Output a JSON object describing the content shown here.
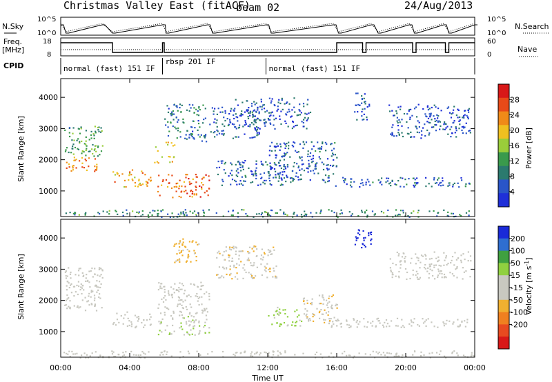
{
  "header": {
    "title": "Christmas Valley East (fitACF)",
    "beam": "beam 02",
    "date": "24/Aug/2013"
  },
  "strips": {
    "nsky": {
      "left_label": "N.Sky",
      "right_label": "N.Search",
      "left_ticks": [
        "10^5",
        "10^0"
      ],
      "right_ticks": [
        "10^5",
        "10^0"
      ]
    },
    "freq": {
      "left_label_1": "Freq.",
      "left_label_2": "[MHz]",
      "right_label": "Nave",
      "left_ticks": [
        "18",
        "8"
      ],
      "right_ticks": [
        "60",
        "0"
      ]
    },
    "cpid": {
      "label": "CPID",
      "segments": [
        {
          "start_hour": 0.0,
          "end_hour": 5.9,
          "text": "normal (fast) 151 IF"
        },
        {
          "start_hour": 5.9,
          "end_hour": 11.9,
          "text": "rbsp 201 IF"
        },
        {
          "start_hour": 11.9,
          "end_hour": 24.0,
          "text": "normal (fast) 151 IF"
        }
      ]
    }
  },
  "chart_data": [
    {
      "type": "heatmap",
      "name": "power-panel",
      "ylabel": "Slant Range [km]",
      "xlabel": "",
      "xlim_hours": [
        0,
        24
      ],
      "ylim": [
        180,
        4600
      ],
      "yticks": [
        1000,
        2000,
        3000,
        4000
      ],
      "colorbar": {
        "label": "Power [dB]",
        "range": [
          0,
          32
        ],
        "ticks": [
          4,
          8,
          12,
          16,
          20,
          24,
          28
        ],
        "colors": [
          "#1f2fd8",
          "#2a55c8",
          "#2b7a6e",
          "#3a9a4c",
          "#9acd3a",
          "#f0c020",
          "#f08a18",
          "#e84a18",
          "#d81818"
        ]
      },
      "features": [
        {
          "h0": 0.2,
          "h1": 2.2,
          "r0": 1650,
          "r1": 2100,
          "value": 23
        },
        {
          "h0": 0.2,
          "h1": 2.4,
          "r0": 2100,
          "r1": 3100,
          "value": 12
        },
        {
          "h0": 3.0,
          "h1": 5.2,
          "r0": 1150,
          "r1": 1700,
          "value": 22
        },
        {
          "h0": 5.4,
          "h1": 6.6,
          "r0": 1900,
          "r1": 2600,
          "value": 19
        },
        {
          "h0": 5.6,
          "h1": 8.6,
          "r0": 800,
          "r1": 1550,
          "value": 25
        },
        {
          "h0": 6.0,
          "h1": 8.4,
          "r0": 2600,
          "r1": 3800,
          "value": 8
        },
        {
          "h0": 8.6,
          "h1": 11.5,
          "r0": 2700,
          "r1": 3700,
          "value": 6
        },
        {
          "h0": 9.0,
          "h1": 13.0,
          "r0": 1200,
          "r1": 2000,
          "value": 6
        },
        {
          "h0": 10.0,
          "h1": 14.5,
          "r0": 3000,
          "r1": 4000,
          "value": 5
        },
        {
          "h0": 12.0,
          "h1": 16.0,
          "r0": 1300,
          "r1": 2600,
          "value": 6
        },
        {
          "h0": 15.5,
          "h1": 23.8,
          "r0": 1150,
          "r1": 1450,
          "value": 7
        },
        {
          "h0": 17.0,
          "h1": 18.0,
          "r0": 3300,
          "r1": 4300,
          "value": 5
        },
        {
          "h0": 19.0,
          "h1": 23.8,
          "r0": 2700,
          "r1": 3800,
          "value": 5
        },
        {
          "h0": 0.0,
          "h1": 24.0,
          "r0": 180,
          "r1": 420,
          "value": 10
        }
      ]
    },
    {
      "type": "heatmap",
      "name": "velocity-panel",
      "ylabel": "Slant Range [km]",
      "xlabel": "Time UT",
      "xticks": [
        "00:00",
        "04:00",
        "08:00",
        "12:00",
        "16:00",
        "20:00",
        "00:00"
      ],
      "xlim_hours": [
        0,
        24
      ],
      "ylim": [
        180,
        4600
      ],
      "yticks": [
        1000,
        2000,
        3000,
        4000
      ],
      "colorbar": {
        "label": "Velocity [m s^-1]",
        "label_parts": [
          "Velocity [m s",
          "-1",
          "]"
        ],
        "range": [
          -250,
          250
        ],
        "ticks": [
          "200",
          "100",
          "50",
          "15",
          "-15",
          "-50",
          "-100",
          "-200"
        ],
        "tick_values": [
          200,
          100,
          50,
          15,
          -15,
          -50,
          -100,
          -200
        ],
        "colors": [
          "#1a2ad8",
          "#2f6ed0",
          "#3fa040",
          "#90d040",
          "#c8c8c0",
          "#c8c8c0",
          "#f0b030",
          "#f08020",
          "#e84a20",
          "#d81818"
        ]
      },
      "features": [
        {
          "h0": 0.2,
          "h1": 2.4,
          "r0": 1650,
          "r1": 3100,
          "value": 0
        },
        {
          "h0": 3.0,
          "h1": 5.2,
          "r0": 1150,
          "r1": 1700,
          "value": 0
        },
        {
          "h0": 5.6,
          "h1": 8.6,
          "r0": 900,
          "r1": 1550,
          "value": 40
        },
        {
          "h0": 5.6,
          "h1": 8.6,
          "r0": 1550,
          "r1": 2600,
          "value": 0
        },
        {
          "h0": 6.5,
          "h1": 8.0,
          "r0": 3200,
          "r1": 4000,
          "value": -60
        },
        {
          "h0": 9.0,
          "h1": 12.5,
          "r0": 2700,
          "r1": 3800,
          "value": -40
        },
        {
          "h0": 12.0,
          "h1": 14.0,
          "r0": 1200,
          "r1": 1800,
          "value": 60
        },
        {
          "h0": 14.0,
          "h1": 16.0,
          "r0": 1300,
          "r1": 2200,
          "value": -40
        },
        {
          "h0": 15.5,
          "h1": 23.8,
          "r0": 1150,
          "r1": 1450,
          "value": 0
        },
        {
          "h0": 17.0,
          "h1": 18.0,
          "r0": 3700,
          "r1": 4300,
          "value": 220
        },
        {
          "h0": 19.0,
          "h1": 23.8,
          "r0": 2700,
          "r1": 3600,
          "value": 0
        },
        {
          "h0": 0.0,
          "h1": 24.0,
          "r0": 180,
          "r1": 400,
          "value": -30
        }
      ]
    }
  ]
}
